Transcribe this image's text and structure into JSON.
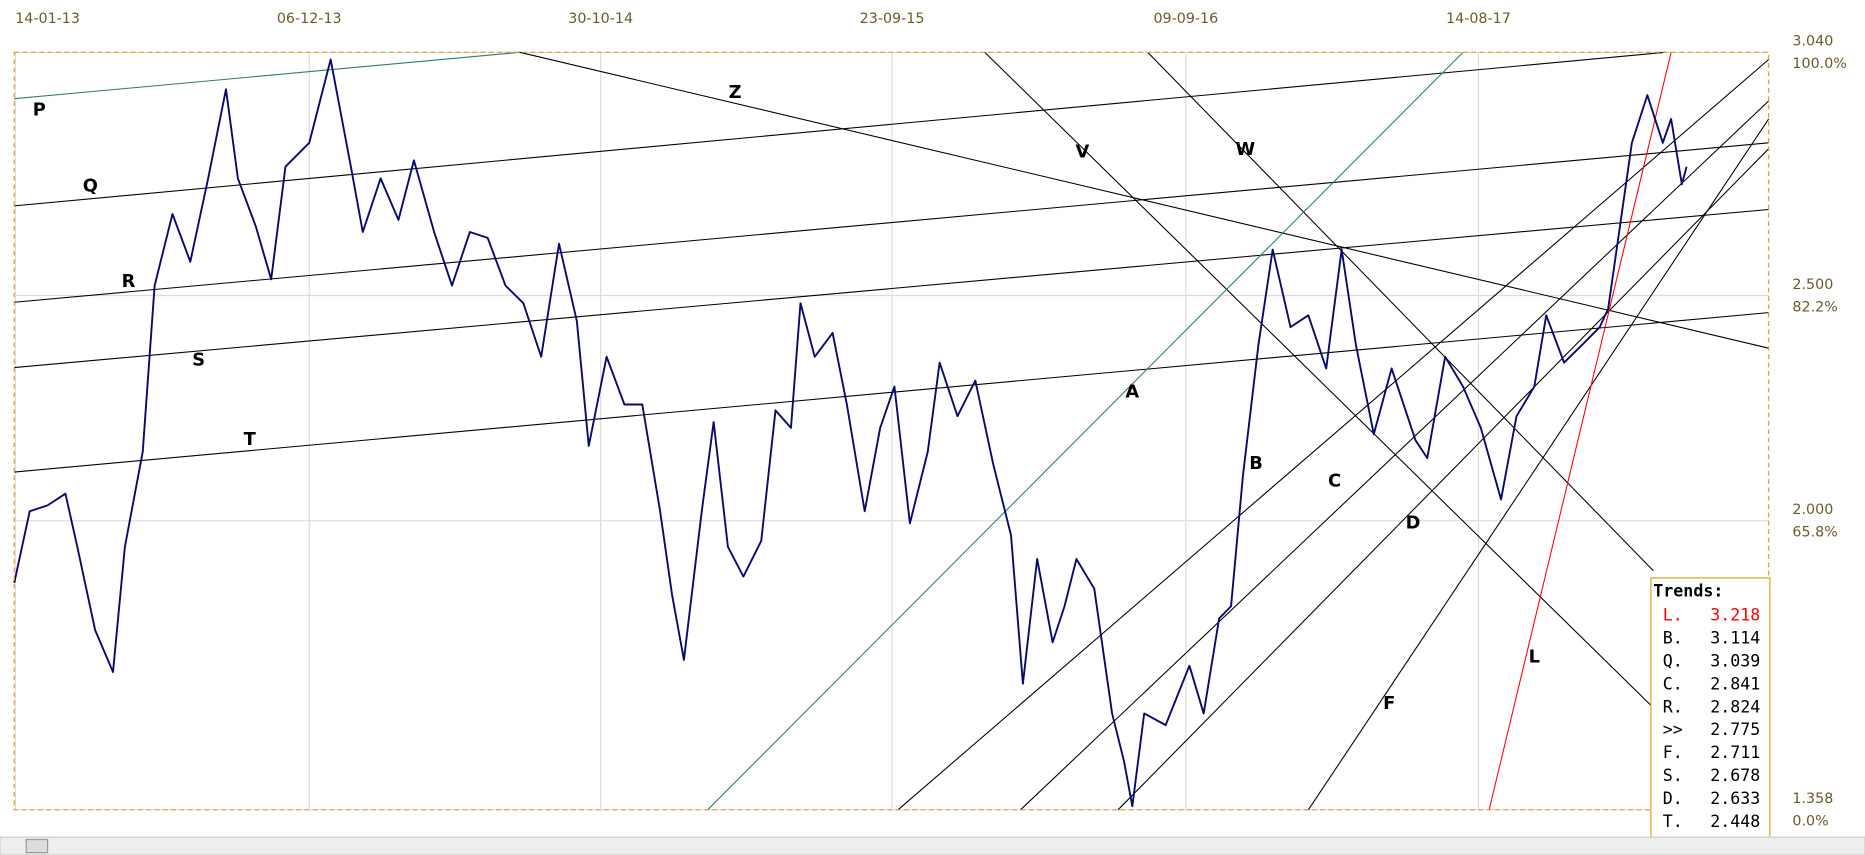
{
  "chart_data": {
    "type": "line",
    "xlim": [
      12,
      1487
    ],
    "ylim": [
      1.358,
      3.04
    ],
    "xticks": [
      {
        "value": 13,
        "label": "14-01-13"
      },
      {
        "value": 260,
        "label": "06-12-13"
      },
      {
        "value": 505,
        "label": "30-10-14"
      },
      {
        "value": 750,
        "label": "23-09-15"
      },
      {
        "value": 997,
        "label": "09-09-16"
      },
      {
        "value": 1243,
        "label": "14-08-17"
      }
    ],
    "yticks": [
      {
        "value": 1.358,
        "label": "1.358"
      },
      {
        "value": 2.0,
        "label": "2.000"
      },
      {
        "value": 2.5,
        "label": "2.500"
      },
      {
        "value": 3.04,
        "label": "3.040"
      }
    ],
    "ytick_percent_labels": [
      "0.0%",
      "65.8%",
      "82.2%",
      "100.0%"
    ],
    "grid": true,
    "series": [
      {
        "color": "#0a0a6e",
        "x": [
          12,
          25,
          40,
          55,
          65,
          80,
          95,
          105,
          120,
          130,
          145,
          160,
          175,
          190,
          200,
          215,
          228,
          240,
          260,
          278,
          295,
          305,
          320,
          335,
          348,
          365,
          380,
          395,
          410,
          425,
          440,
          455,
          470,
          485,
          495,
          510,
          525,
          540,
          555,
          565,
          575,
          590,
          600,
          612,
          625,
          640,
          652,
          665,
          673,
          685,
          700,
          712,
          727,
          740,
          752,
          765,
          780,
          790,
          805,
          820,
          835,
          850,
          860,
          872,
          885,
          895,
          905,
          920,
          935,
          945,
          952,
          962,
          980,
          1000,
          1012,
          1025,
          1035,
          1045,
          1058,
          1070,
          1085,
          1100,
          1115,
          1128,
          1140,
          1155,
          1170,
          1190,
          1200,
          1215,
          1230,
          1245,
          1262,
          1275,
          1290,
          1300,
          1315,
          1330,
          1345,
          1352,
          1362,
          1372,
          1385,
          1398,
          1405,
          1414,
          1418
        ],
        "values": [
          1.862,
          2.021,
          2.034,
          2.06,
          1.942,
          1.757,
          1.664,
          1.942,
          2.153,
          2.522,
          2.681,
          2.575,
          2.76,
          2.958,
          2.76,
          2.654,
          2.536,
          2.786,
          2.839,
          3.024,
          2.786,
          2.641,
          2.76,
          2.668,
          2.8,
          2.641,
          2.522,
          2.641,
          2.628,
          2.522,
          2.483,
          2.364,
          2.615,
          2.443,
          2.166,
          2.364,
          2.258,
          2.258,
          2.021,
          1.836,
          1.691,
          2.021,
          2.219,
          1.942,
          1.876,
          1.955,
          2.245,
          2.206,
          2.483,
          2.364,
          2.417,
          2.258,
          2.021,
          2.206,
          2.298,
          1.994,
          2.153,
          2.351,
          2.232,
          2.311,
          2.126,
          1.968,
          1.638,
          1.915,
          1.73,
          1.81,
          1.915,
          1.849,
          1.572,
          1.466,
          1.366,
          1.572,
          1.546,
          1.678,
          1.572,
          1.783,
          1.81,
          2.1,
          2.39,
          2.602,
          2.43,
          2.456,
          2.338,
          2.602,
          2.39,
          2.192,
          2.338,
          2.179,
          2.139,
          2.364,
          2.298,
          2.206,
          2.047,
          2.232,
          2.298,
          2.456,
          2.351,
          2.39,
          2.43,
          2.47,
          2.654,
          2.839,
          2.945,
          2.839,
          2.892,
          2.747,
          2.786
        ]
      }
    ],
    "trendlines": [
      {
        "label": "P",
        "color": "#2e7d6e",
        "from": [
          12,
          2.937
        ],
        "to": [
          437,
          3.04
        ],
        "label_at": [
          33,
          2.911
        ]
      },
      {
        "label": "Q",
        "color": "#000000",
        "from": [
          12,
          2.699
        ],
        "to": [
          1400,
          3.04
        ],
        "label_at": [
          76,
          2.742
        ]
      },
      {
        "label": "R",
        "color": "#000000",
        "from": [
          12,
          2.485
        ],
        "to": [
          1487,
          2.839
        ],
        "label_at": [
          108,
          2.53
        ]
      },
      {
        "label": "S",
        "color": "#000000",
        "from": [
          12,
          2.34
        ],
        "to": [
          1487,
          2.691
        ],
        "label_at": [
          167,
          2.356
        ]
      },
      {
        "label": "T",
        "color": "#000000",
        "from": [
          12,
          2.108
        ],
        "to": [
          1487,
          2.462
        ],
        "label_at": [
          210,
          2.179
        ]
      },
      {
        "label": "Z",
        "color": "#000000",
        "from": [
          437,
          3.04
        ],
        "to": [
          1487,
          2.383
        ],
        "label_at": [
          618,
          2.95
        ]
      },
      {
        "label": "V",
        "color": "#000000",
        "from": [
          828,
          3.04
        ],
        "to": [
          1400,
          1.559
        ],
        "label_at": [
          910,
          2.818
        ]
      },
      {
        "label": "W",
        "color": "#000000",
        "from": [
          965,
          3.04
        ],
        "to": [
          1390,
          1.889
        ],
        "label_at": [
          1047,
          2.823
        ]
      },
      {
        "label": "A",
        "color": "#2e7d6e",
        "from": [
          595,
          1.358
        ],
        "to": [
          1230,
          3.04
        ],
        "label_at": [
          952,
          2.285
        ]
      },
      {
        "label": "B",
        "color": "#000000",
        "from": [
          755,
          1.358
        ],
        "to": [
          1487,
          3.024
        ],
        "label_at": [
          1056,
          2.126
        ]
      },
      {
        "label": "C",
        "color": "#000000",
        "from": [
          858,
          1.358
        ],
        "to": [
          1487,
          2.932
        ],
        "label_at": [
          1122,
          2.087
        ]
      },
      {
        "label": "D",
        "color": "#000000",
        "from": [
          940,
          1.358
        ],
        "to": [
          1487,
          2.826
        ],
        "label_at": [
          1188,
          1.994
        ]
      },
      {
        "label": "F",
        "color": "#000000",
        "from": [
          1100,
          1.358
        ],
        "to": [
          1487,
          2.892
        ],
        "label_at": [
          1168,
          1.593
        ]
      },
      {
        "label": "L",
        "color": "#ff0000",
        "from": [
          1252,
          1.358
        ],
        "to": [
          1405,
          3.04
        ],
        "label_at": [
          1290,
          1.696
        ]
      }
    ],
    "trends_box": {
      "title": "Trends:",
      "items": [
        {
          "name": "L.",
          "value": "3.218",
          "color": "#ff0000"
        },
        {
          "name": "B.",
          "value": "3.114",
          "color": "#000000"
        },
        {
          "name": "Q.",
          "value": "3.039",
          "color": "#000000"
        },
        {
          "name": "C.",
          "value": "2.841",
          "color": "#000000"
        },
        {
          "name": "R.",
          "value": "2.824",
          "color": "#000000"
        },
        {
          "name": ">>",
          "value": "2.775",
          "color": "#000000"
        },
        {
          "name": "F.",
          "value": "2.711",
          "color": "#000000"
        },
        {
          "name": "S.",
          "value": "2.678",
          "color": "#000000"
        },
        {
          "name": "D.",
          "value": "2.633",
          "color": "#000000"
        },
        {
          "name": "T.",
          "value": "2.448",
          "color": "#000000"
        }
      ]
    }
  }
}
